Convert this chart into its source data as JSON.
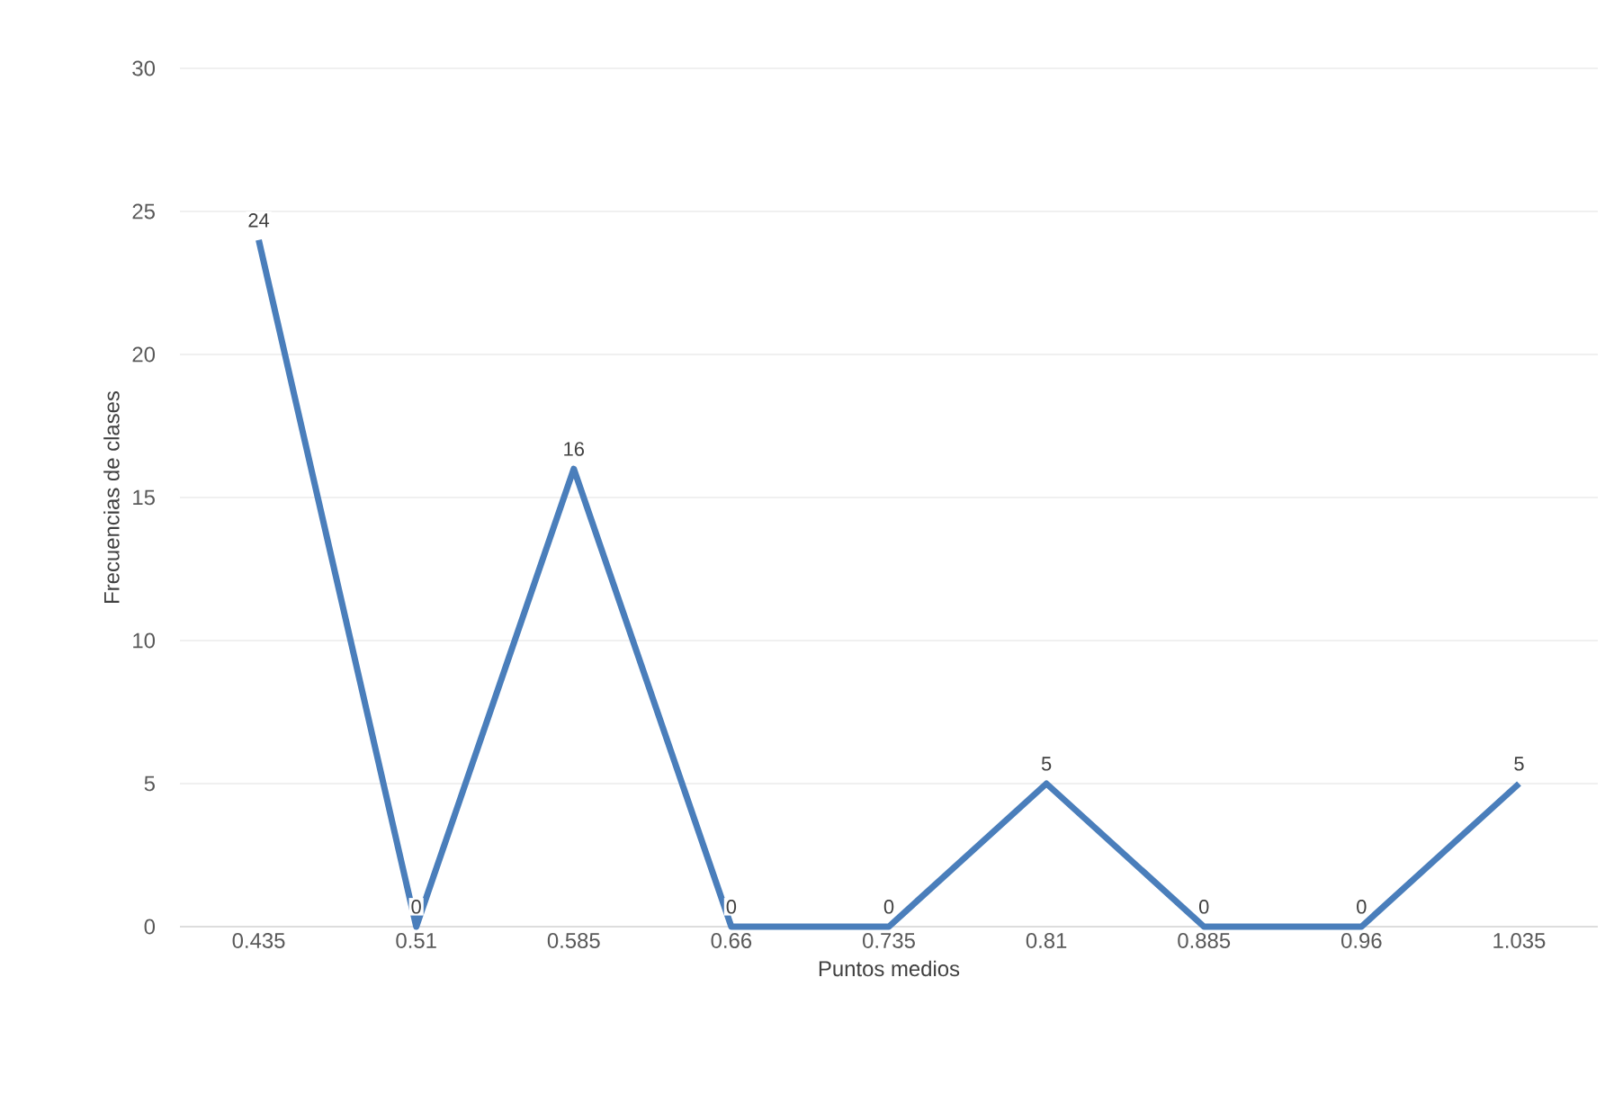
{
  "chart_data": {
    "type": "line",
    "xlabel": "Puntos medios",
    "ylabel": "Frecuencias de clases",
    "categories": [
      "0.435",
      "0.51",
      "0.585",
      "0.66",
      "0.735",
      "0.81",
      "0.885",
      "0.96",
      "1.035"
    ],
    "values": [
      24,
      0,
      16,
      0,
      0,
      5,
      0,
      0,
      5
    ],
    "color": "#4a7ebb",
    "ylim": [
      0,
      30
    ],
    "yticks": [
      0,
      5,
      10,
      15,
      20,
      25,
      30
    ],
    "grid": "y",
    "data_labels": true,
    "marker": "none",
    "line_style": "solid"
  }
}
